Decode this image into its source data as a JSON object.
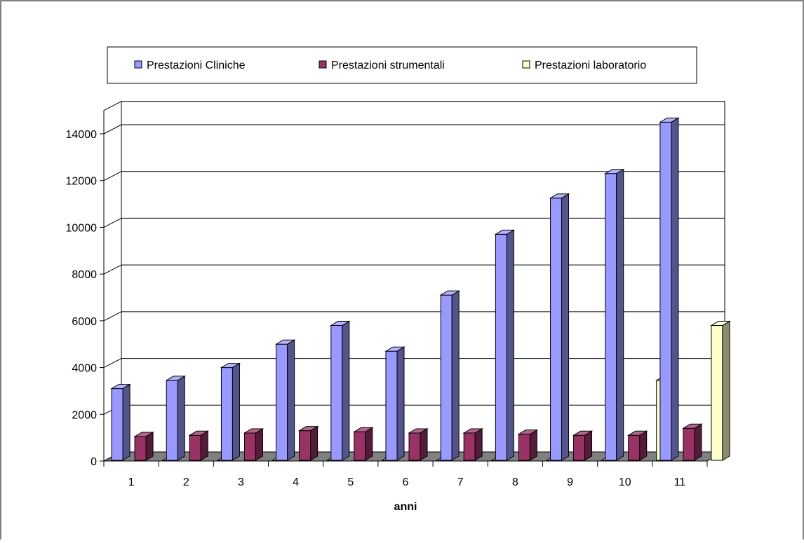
{
  "chart_data": {
    "type": "bar",
    "title": "",
    "xlabel": "anni",
    "ylabel": "",
    "categories": [
      "1",
      "2",
      "3",
      "4",
      "5",
      "6",
      "7",
      "8",
      "9",
      "10",
      "11"
    ],
    "ylim": [
      0,
      15000
    ],
    "yticks": [
      0,
      2000,
      4000,
      6000,
      8000,
      10000,
      12000,
      14000
    ],
    "grid": true,
    "legend_position": "top",
    "style": "3d-clustered-column",
    "series": [
      {
        "name": "Prestazioni Cliniche",
        "color": "#9999FF",
        "values": [
          3100,
          3450,
          4000,
          5000,
          5800,
          4700,
          7100,
          9700,
          11250,
          12300,
          14500
        ]
      },
      {
        "name": "Prestazioni strumentali",
        "color": "#993366",
        "values": [
          1050,
          1100,
          1200,
          1300,
          1250,
          1200,
          1200,
          1150,
          1100,
          1100,
          1400
        ]
      },
      {
        "name": "Prestazioni laboratorio",
        "color": "#FFFFCC",
        "values": [
          0,
          0,
          0,
          0,
          0,
          0,
          0,
          0,
          0,
          3450,
          5800
        ]
      }
    ]
  }
}
